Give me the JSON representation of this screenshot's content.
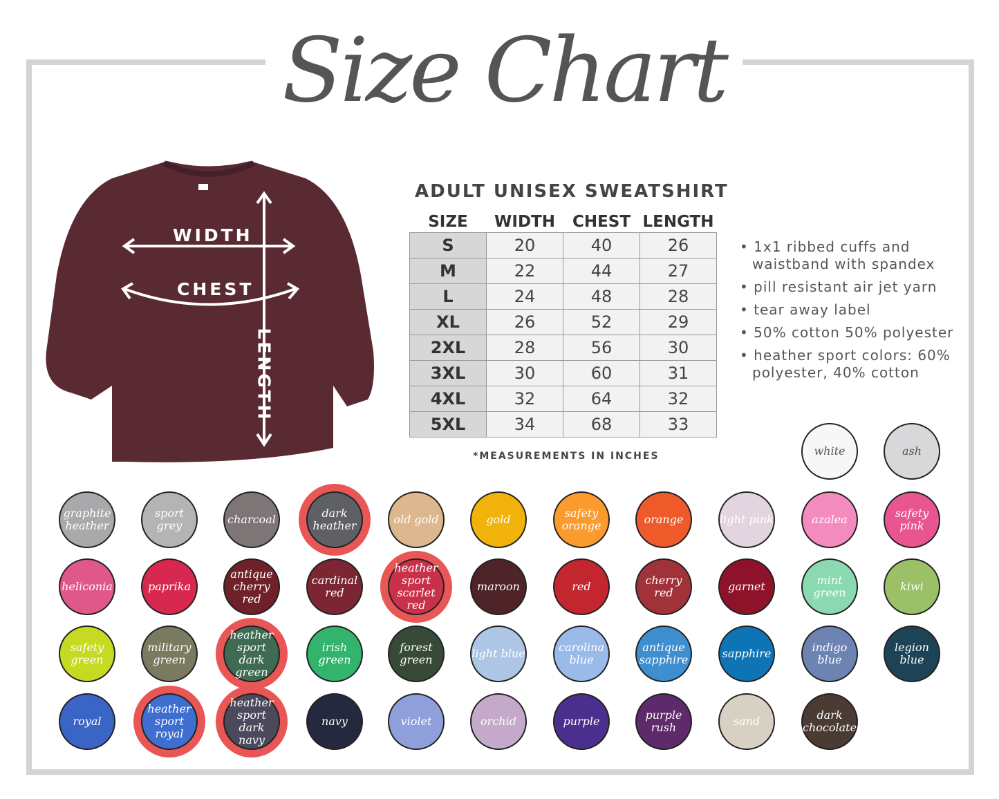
{
  "title": "Size Chart",
  "shirt": {
    "color": "#5a2a33",
    "labels": {
      "width": "WIDTH",
      "chest": "CHEST",
      "length": "LENGTH"
    }
  },
  "table": {
    "title": "ADULT UNISEX SWEATSHIRT",
    "headers": [
      "SIZE",
      "WIDTH",
      "CHEST",
      "LENGTH"
    ],
    "rows": [
      [
        "S",
        "20",
        "40",
        "26"
      ],
      [
        "M",
        "22",
        "44",
        "27"
      ],
      [
        "L",
        "24",
        "48",
        "28"
      ],
      [
        "XL",
        "26",
        "52",
        "29"
      ],
      [
        "2XL",
        "28",
        "56",
        "30"
      ],
      [
        "3XL",
        "30",
        "60",
        "31"
      ],
      [
        "4XL",
        "32",
        "64",
        "32"
      ],
      [
        "5XL",
        "34",
        "68",
        "33"
      ]
    ],
    "note": "*MEASUREMENTS IN INCHES"
  },
  "features": [
    "1x1 ribbed cuffs and waistband with spandex",
    "pill resistant air jet yarn",
    "tear away label",
    "50% cotton 50% polyester",
    "heather sport colors: 60% polyester, 40% cotton"
  ],
  "top_swatches": [
    {
      "name": "white",
      "color": "#f7f7f7",
      "text": "#555"
    },
    {
      "name": "ash",
      "color": "#d8d8da",
      "text": "#555"
    }
  ],
  "swatch_rows": [
    [
      {
        "name": "graphite heather",
        "color": "#a9a9ab"
      },
      {
        "name": "sport grey",
        "color": "#b4b4b6"
      },
      {
        "name": "charcoal",
        "color": "#7d7576"
      },
      {
        "name": "dark heather",
        "color": "#5e6066",
        "circled": true
      },
      {
        "name": "old gold",
        "color": "#ddb88e"
      },
      {
        "name": "gold",
        "color": "#f2b20c"
      },
      {
        "name": "safety orange",
        "color": "#fb9a2d"
      },
      {
        "name": "orange",
        "color": "#ee5a2a"
      },
      {
        "name": "light pink",
        "color": "#e3d5e0"
      },
      {
        "name": "azalea",
        "color": "#f48bbf"
      },
      {
        "name": "safety pink",
        "color": "#e95590"
      }
    ],
    [
      {
        "name": "heliconia",
        "color": "#e0578a"
      },
      {
        "name": "paprika",
        "color": "#d9284f"
      },
      {
        "name": "antique cherry red",
        "color": "#6f2129"
      },
      {
        "name": "cardinal red",
        "color": "#7c2533"
      },
      {
        "name": "heather sport scarlet red",
        "color": "#c9304a",
        "circled": true
      },
      {
        "name": "maroon",
        "color": "#4e2429"
      },
      {
        "name": "red",
        "color": "#c3262f"
      },
      {
        "name": "cherry red",
        "color": "#a2323a"
      },
      {
        "name": "garnet",
        "color": "#8e1229"
      },
      {
        "name": "mint green",
        "color": "#8ad9b0"
      },
      {
        "name": "kiwi",
        "color": "#9cc068"
      }
    ],
    [
      {
        "name": "safety green",
        "color": "#c7da22"
      },
      {
        "name": "military green",
        "color": "#7a7a60"
      },
      {
        "name": "heather sport dark green",
        "color": "#3f6b53",
        "circled": true
      },
      {
        "name": "irish green",
        "color": "#32b46c"
      },
      {
        "name": "forest green",
        "color": "#374a36"
      },
      {
        "name": "light blue",
        "color": "#adc6e6"
      },
      {
        "name": "carolina blue",
        "color": "#9abbea"
      },
      {
        "name": "antique sapphire",
        "color": "#3f8ece"
      },
      {
        "name": "sapphire",
        "color": "#0e74b6"
      },
      {
        "name": "indigo blue",
        "color": "#6d84b3"
      },
      {
        "name": "legion blue",
        "color": "#1d4456"
      }
    ],
    [
      {
        "name": "royal",
        "color": "#3a65c6"
      },
      {
        "name": "heather sport royal",
        "color": "#3d6ed0",
        "circled": true
      },
      {
        "name": "heather sport dark navy",
        "color": "#4a4a5c",
        "circled": true
      },
      {
        "name": "navy",
        "color": "#25293f"
      },
      {
        "name": "violet",
        "color": "#8f9fdc"
      },
      {
        "name": "orchid",
        "color": "#c4a9cb"
      },
      {
        "name": "purple",
        "color": "#4a2f8f"
      },
      {
        "name": "purple rush",
        "color": "#5e2a6b"
      },
      {
        "name": "sand",
        "color": "#d8d1c3"
      },
      {
        "name": "dark chocolate",
        "color": "#4a3b33"
      }
    ]
  ],
  "circle_color": "#e85656"
}
